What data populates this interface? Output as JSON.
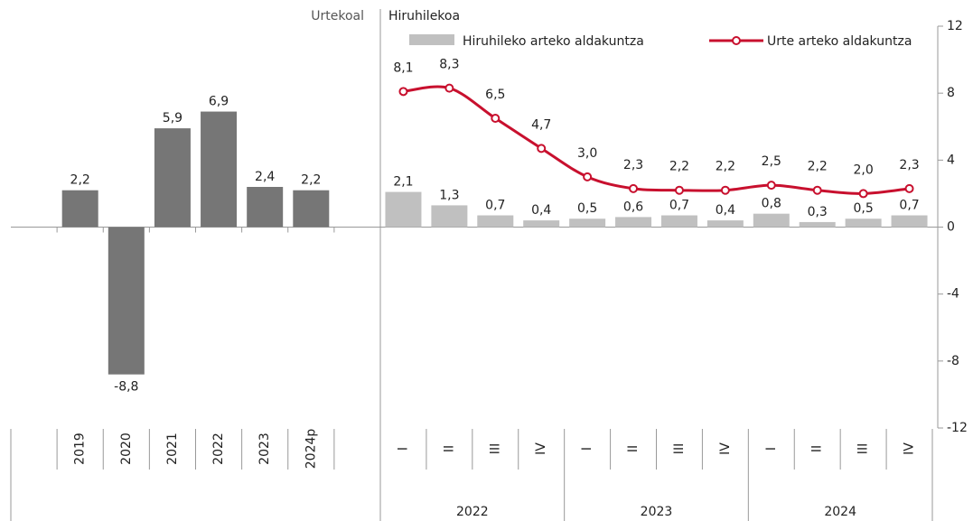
{
  "chart_data": [
    {
      "type": "bar",
      "label": "Urtekoal",
      "categories": [
        "2019",
        "2020",
        "2021",
        "2022",
        "2023",
        "2024p"
      ],
      "values": [
        2.2,
        -8.8,
        5.9,
        6.9,
        2.4,
        2.2
      ],
      "value_labels": [
        "2,2",
        "-8,8",
        "5,9",
        "6,9",
        "2,4",
        "2,2"
      ],
      "color": "#767676",
      "ylim": [
        -12,
        12
      ]
    },
    {
      "type": "bar_line",
      "label": "Hiruhilekoa",
      "categories": [
        "I",
        "II",
        "III",
        "IV",
        "I",
        "II",
        "III",
        "IV",
        "I",
        "II",
        "III",
        "IV"
      ],
      "x_groups": [
        "2022",
        "2023",
        "2024"
      ],
      "series": [
        {
          "name": "Hiruhileko arteko aldakuntza",
          "kind": "bar",
          "color": "#c0c0c0",
          "values": [
            2.1,
            1.3,
            0.7,
            0.4,
            0.5,
            0.6,
            0.7,
            0.4,
            0.8,
            0.3,
            0.5,
            0.7
          ],
          "value_labels": [
            "2,1",
            "1,3",
            "0,7",
            "0,4",
            "0,5",
            "0,6",
            "0,7",
            "0,4",
            "0,8",
            "0,3",
            "0,5",
            "0,7"
          ]
        },
        {
          "name": "Urte arteko aldakuntza",
          "kind": "line",
          "color": "#c8102e",
          "values": [
            8.1,
            8.3,
            6.5,
            4.7,
            3.0,
            2.3,
            2.2,
            2.2,
            2.5,
            2.2,
            2.0,
            2.3
          ],
          "value_labels": [
            "8,1",
            "8,3",
            "6,5",
            "4,7",
            "3,0",
            "2,3",
            "2,2",
            "2,2",
            "2,5",
            "2,2",
            "2,0",
            "2,3"
          ]
        }
      ],
      "ylim": [
        -12,
        12
      ],
      "yticks": [
        -12,
        -8,
        -4,
        0,
        4,
        8,
        12
      ]
    }
  ]
}
